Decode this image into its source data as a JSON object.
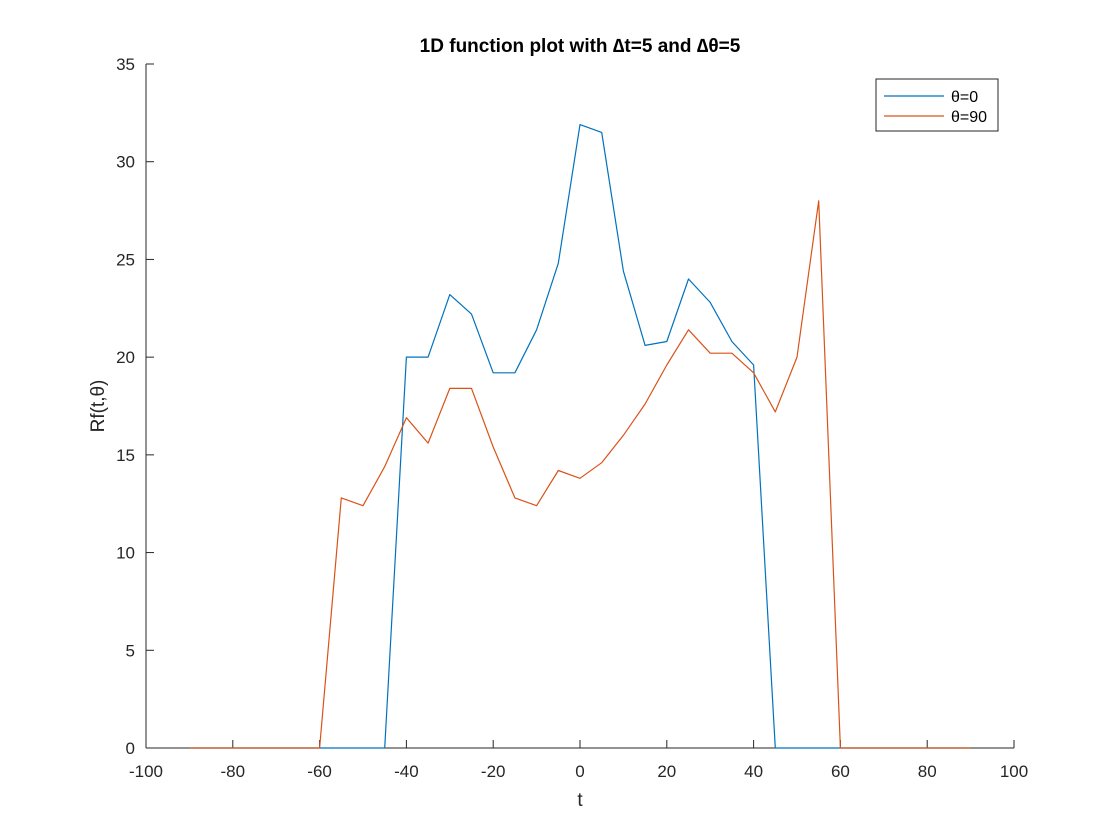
{
  "chart_data": {
    "type": "line",
    "title": "1D function plot with ∆t=5 and ∆θ=5",
    "xlabel": "t",
    "ylabel": "Rf(t,θ)",
    "xlim": [
      -100,
      100
    ],
    "ylim": [
      0,
      35
    ],
    "xticks": [
      "-100",
      "-80",
      "-60",
      "-40",
      "-20",
      "0",
      "20",
      "40",
      "60",
      "80",
      "100"
    ],
    "yticks": [
      "0",
      "5",
      "10",
      "15",
      "20",
      "25",
      "30",
      "35"
    ],
    "grid": false,
    "legend_position": "top-right",
    "x": [
      -90,
      -85,
      -80,
      -75,
      -70,
      -65,
      -60,
      -55,
      -50,
      -45,
      -40,
      -35,
      -30,
      -25,
      -20,
      -15,
      -10,
      -5,
      0,
      5,
      10,
      15,
      20,
      25,
      30,
      35,
      40,
      45,
      50,
      55,
      60,
      65,
      70,
      75,
      80,
      85,
      90
    ],
    "series": [
      {
        "name": "θ=0",
        "color": "#0072BD",
        "values": [
          0,
          0,
          0,
          0,
          0,
          0,
          0,
          0,
          0,
          0,
          20.0,
          20.0,
          23.2,
          22.2,
          19.2,
          19.2,
          21.4,
          24.8,
          31.9,
          31.5,
          24.4,
          20.6,
          20.8,
          24.0,
          22.8,
          20.8,
          19.6,
          0,
          0,
          0,
          0,
          0,
          0,
          0,
          0,
          0,
          0
        ]
      },
      {
        "name": "θ=90",
        "color": "#D95319",
        "values": [
          0,
          0,
          0,
          0,
          0,
          0,
          0,
          12.8,
          12.4,
          14.4,
          16.9,
          15.6,
          18.4,
          18.4,
          15.4,
          12.8,
          12.4,
          14.2,
          13.8,
          14.6,
          16.0,
          17.6,
          19.6,
          21.4,
          20.2,
          20.2,
          19.2,
          17.2,
          20.0,
          28.0,
          0,
          0,
          0,
          0,
          0,
          0,
          0
        ]
      }
    ]
  }
}
